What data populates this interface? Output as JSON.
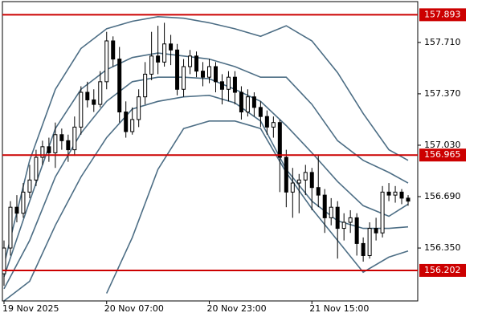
{
  "chart_data": {
    "type": "candlestick",
    "open": [
      156.18,
      156.35,
      156.62,
      156.58,
      156.72,
      156.8,
      156.95,
      157.02,
      156.98,
      157.1,
      157.06,
      157.0,
      157.15,
      157.38,
      157.33,
      157.3,
      157.45,
      157.72,
      157.6,
      157.25,
      157.12,
      157.2,
      157.35,
      157.5,
      157.62,
      157.58,
      157.7,
      157.66,
      157.4,
      157.55,
      157.62,
      157.52,
      157.48,
      157.55,
      157.45,
      157.4,
      157.48,
      157.38,
      157.25,
      157.35,
      157.28,
      157.22,
      157.15,
      157.18,
      156.95,
      156.72,
      156.78,
      156.8,
      156.85,
      156.75,
      156.7,
      156.55,
      156.62,
      156.48,
      156.52,
      156.55,
      156.38,
      156.3,
      156.48,
      156.45,
      156.72,
      156.7,
      156.72,
      156.68
    ],
    "high": [
      156.4,
      156.66,
      156.7,
      156.78,
      156.9,
      157.0,
      157.06,
      157.08,
      157.18,
      157.14,
      157.1,
      157.22,
      157.42,
      157.45,
      157.4,
      157.52,
      157.78,
      157.75,
      157.68,
      157.32,
      157.28,
      157.4,
      157.58,
      157.78,
      157.82,
      157.84,
      157.76,
      157.7,
      157.6,
      157.66,
      157.65,
      157.58,
      157.6,
      157.58,
      157.5,
      157.52,
      157.52,
      157.42,
      157.4,
      157.38,
      157.32,
      157.26,
      157.22,
      157.2,
      157.0,
      156.88,
      156.84,
      156.9,
      156.88,
      156.96,
      156.74,
      156.68,
      156.66,
      156.58,
      156.6,
      156.58,
      156.42,
      156.52,
      156.55,
      156.76,
      156.78,
      156.76,
      156.74,
      156.7
    ],
    "low": [
      156.1,
      156.3,
      156.52,
      156.55,
      156.68,
      156.76,
      156.9,
      156.92,
      156.88,
      157.0,
      156.92,
      156.96,
      157.1,
      157.28,
      157.25,
      157.28,
      157.4,
      157.55,
      157.18,
      157.08,
      157.1,
      157.15,
      157.3,
      157.46,
      157.5,
      157.55,
      157.56,
      157.36,
      157.35,
      157.5,
      157.48,
      157.42,
      157.44,
      157.38,
      157.3,
      157.32,
      157.3,
      157.2,
      157.22,
      157.22,
      157.15,
      157.1,
      157.08,
      156.72,
      156.62,
      156.55,
      156.58,
      156.7,
      156.6,
      156.62,
      156.45,
      156.5,
      156.28,
      156.4,
      156.45,
      156.3,
      156.26,
      156.28,
      156.4,
      156.42,
      156.66,
      156.65,
      156.64,
      156.63
    ],
    "close": [
      156.35,
      156.62,
      156.58,
      156.72,
      156.8,
      156.95,
      157.02,
      156.98,
      157.1,
      157.06,
      157.0,
      157.15,
      157.38,
      157.33,
      157.3,
      157.45,
      157.72,
      157.6,
      157.25,
      157.12,
      157.2,
      157.35,
      157.5,
      157.62,
      157.58,
      157.7,
      157.66,
      157.4,
      157.55,
      157.62,
      157.52,
      157.48,
      157.55,
      157.45,
      157.4,
      157.48,
      157.38,
      157.25,
      157.35,
      157.28,
      157.22,
      157.15,
      157.18,
      156.95,
      156.72,
      156.78,
      156.8,
      156.85,
      156.75,
      156.7,
      156.55,
      156.62,
      156.48,
      156.52,
      156.55,
      156.38,
      156.3,
      156.48,
      156.45,
      156.72,
      156.7,
      156.72,
      156.68,
      156.66
    ],
    "bull_color": "#ffffff",
    "bear_color": "#000000",
    "series": [
      {
        "color": "#4d6e85",
        "x": [
          0,
          4,
          8,
          12,
          16,
          20,
          24,
          28,
          32,
          36,
          40,
          44,
          48,
          52,
          56,
          60,
          63
        ],
        "values": [
          156.24,
          156.93,
          157.4,
          157.67,
          157.8,
          157.85,
          157.88,
          157.87,
          157.84,
          157.8,
          157.75,
          157.82,
          157.72,
          157.51,
          157.24,
          157.0,
          156.93
        ]
      },
      {
        "color": "#4d6e85",
        "x": [
          0,
          4,
          8,
          12,
          16,
          20,
          24,
          28,
          32,
          36,
          40,
          44,
          48,
          52,
          56,
          60,
          63
        ],
        "values": [
          156.16,
          156.66,
          157.14,
          157.4,
          157.53,
          157.61,
          157.64,
          157.62,
          157.6,
          157.55,
          157.48,
          157.48,
          157.3,
          157.06,
          156.93,
          156.85,
          156.78
        ]
      },
      {
        "color": "#4d6e85",
        "x": [
          0,
          4,
          8,
          12,
          16,
          20,
          24,
          28,
          32,
          36,
          40,
          44,
          48,
          52,
          56,
          60,
          63
        ],
        "values": [
          156.08,
          156.4,
          156.82,
          157.11,
          157.32,
          157.45,
          157.48,
          157.48,
          157.47,
          157.4,
          157.32,
          157.16,
          156.98,
          156.79,
          156.63,
          156.56,
          156.64
        ]
      },
      {
        "color": "#4d6e85",
        "x": [
          0,
          4,
          8,
          12,
          16,
          20,
          24,
          28,
          32,
          36,
          40,
          44,
          48,
          52,
          56,
          60,
          63
        ],
        "values": [
          156.0,
          156.13,
          156.5,
          156.82,
          157.08,
          157.27,
          157.32,
          157.35,
          157.36,
          157.31,
          157.19,
          156.87,
          156.66,
          156.53,
          156.48,
          156.48,
          156.49
        ]
      },
      {
        "color": "#4d6e85",
        "x": [
          0,
          4,
          8,
          12,
          16,
          20,
          24,
          28,
          32,
          36,
          40,
          44,
          48,
          52,
          56,
          60,
          63
        ],
        "values": [
          null,
          null,
          null,
          null,
          156.05,
          156.42,
          156.87,
          157.14,
          157.19,
          157.19,
          157.14,
          156.85,
          156.61,
          156.4,
          156.19,
          156.29,
          156.33
        ]
      }
    ],
    "levels": [
      157.893,
      156.965,
      156.202
    ],
    "level_color": "#cc0000",
    "xlim": [
      -0.25,
      64.5
    ],
    "xticks": [
      {
        "value": 0,
        "label": "19 Nov 2025"
      },
      {
        "value": 16,
        "label": "20 Nov 07:00"
      },
      {
        "value": 32,
        "label": "20 Nov 23:00"
      },
      {
        "value": 48,
        "label": "21 Nov 15:00"
      }
    ],
    "ylim": [
      156.0,
      157.98
    ],
    "yticks": [
      {
        "value": 157.71,
        "label": "157.710"
      },
      {
        "value": 157.37,
        "label": "157.370"
      },
      {
        "value": 157.03,
        "label": "157.030"
      },
      {
        "value": 156.69,
        "label": "156.690"
      },
      {
        "value": 156.35,
        "label": "156.350"
      }
    ]
  }
}
